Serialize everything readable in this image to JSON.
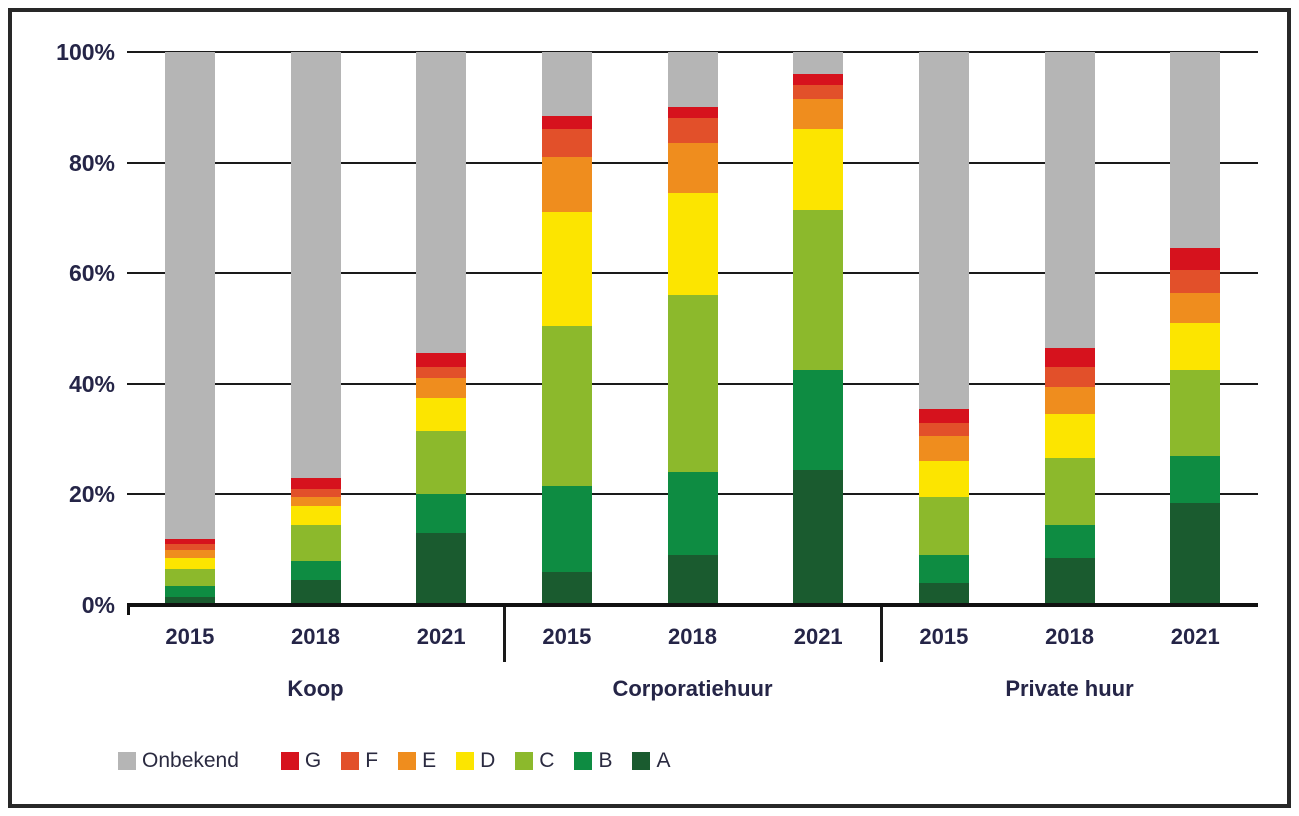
{
  "chart_data": {
    "type": "bar",
    "stacked": true,
    "title": "",
    "xlabel": "",
    "ylabel": "",
    "unit": "%",
    "ylim": [
      0,
      100
    ],
    "grid": true,
    "legend_position": "bottom",
    "ytick_labels": [
      "100%",
      "80%",
      "60%",
      "40%",
      "20%",
      "0%"
    ],
    "groups": [
      {
        "label": "Koop",
        "years": [
          "2015",
          "2018",
          "2021"
        ]
      },
      {
        "label": "Corporatiehuur",
        "years": [
          "2015",
          "2018",
          "2021"
        ]
      },
      {
        "label": "Private huur",
        "years": [
          "2015",
          "2018",
          "2021"
        ]
      }
    ],
    "bars": [
      "Koop 2015",
      "Koop 2018",
      "Koop 2021",
      "Corporatiehuur 2015",
      "Corporatiehuur 2018",
      "Corporatiehuur 2021",
      "Private huur 2015",
      "Private huur 2018",
      "Private huur 2021"
    ],
    "stack_order_bottom_to_top": [
      "A",
      "B",
      "C",
      "D",
      "E",
      "F",
      "G",
      "Onbekend"
    ],
    "series": [
      {
        "name": "Onbekend",
        "color": "#b5b5b5",
        "values": [
          88,
          77,
          54.5,
          11.5,
          10,
          4,
          64.5,
          53.5,
          35.5
        ]
      },
      {
        "name": "G",
        "color": "#d6121d",
        "values": [
          1,
          2,
          2.5,
          2.5,
          2,
          2,
          2.5,
          3.5,
          4
        ]
      },
      {
        "name": "F",
        "color": "#e2502a",
        "values": [
          1,
          1.5,
          2,
          5,
          4.5,
          2.5,
          2.5,
          3.5,
          4
        ]
      },
      {
        "name": "E",
        "color": "#ef8d1e",
        "values": [
          1.5,
          1.5,
          3.5,
          10,
          9,
          5.5,
          4.5,
          5,
          5.5
        ]
      },
      {
        "name": "D",
        "color": "#fce500",
        "values": [
          2,
          3.5,
          6,
          20.5,
          18.5,
          14.5,
          6.5,
          8,
          8.5
        ]
      },
      {
        "name": "C",
        "color": "#8cb92c",
        "values": [
          3,
          6.5,
          11.5,
          29,
          32,
          29,
          10.5,
          12,
          15.5
        ]
      },
      {
        "name": "B",
        "color": "#0e8c42",
        "values": [
          2,
          3.5,
          7,
          15.5,
          15,
          18,
          5,
          6,
          8.5
        ]
      },
      {
        "name": "A",
        "color": "#1a5b2f",
        "values": [
          1.5,
          4.5,
          13,
          6,
          9,
          24.5,
          4,
          8.5,
          18.5
        ]
      }
    ],
    "legend_order": [
      "Onbekend",
      "G",
      "F",
      "E",
      "D",
      "C",
      "B",
      "A"
    ]
  }
}
